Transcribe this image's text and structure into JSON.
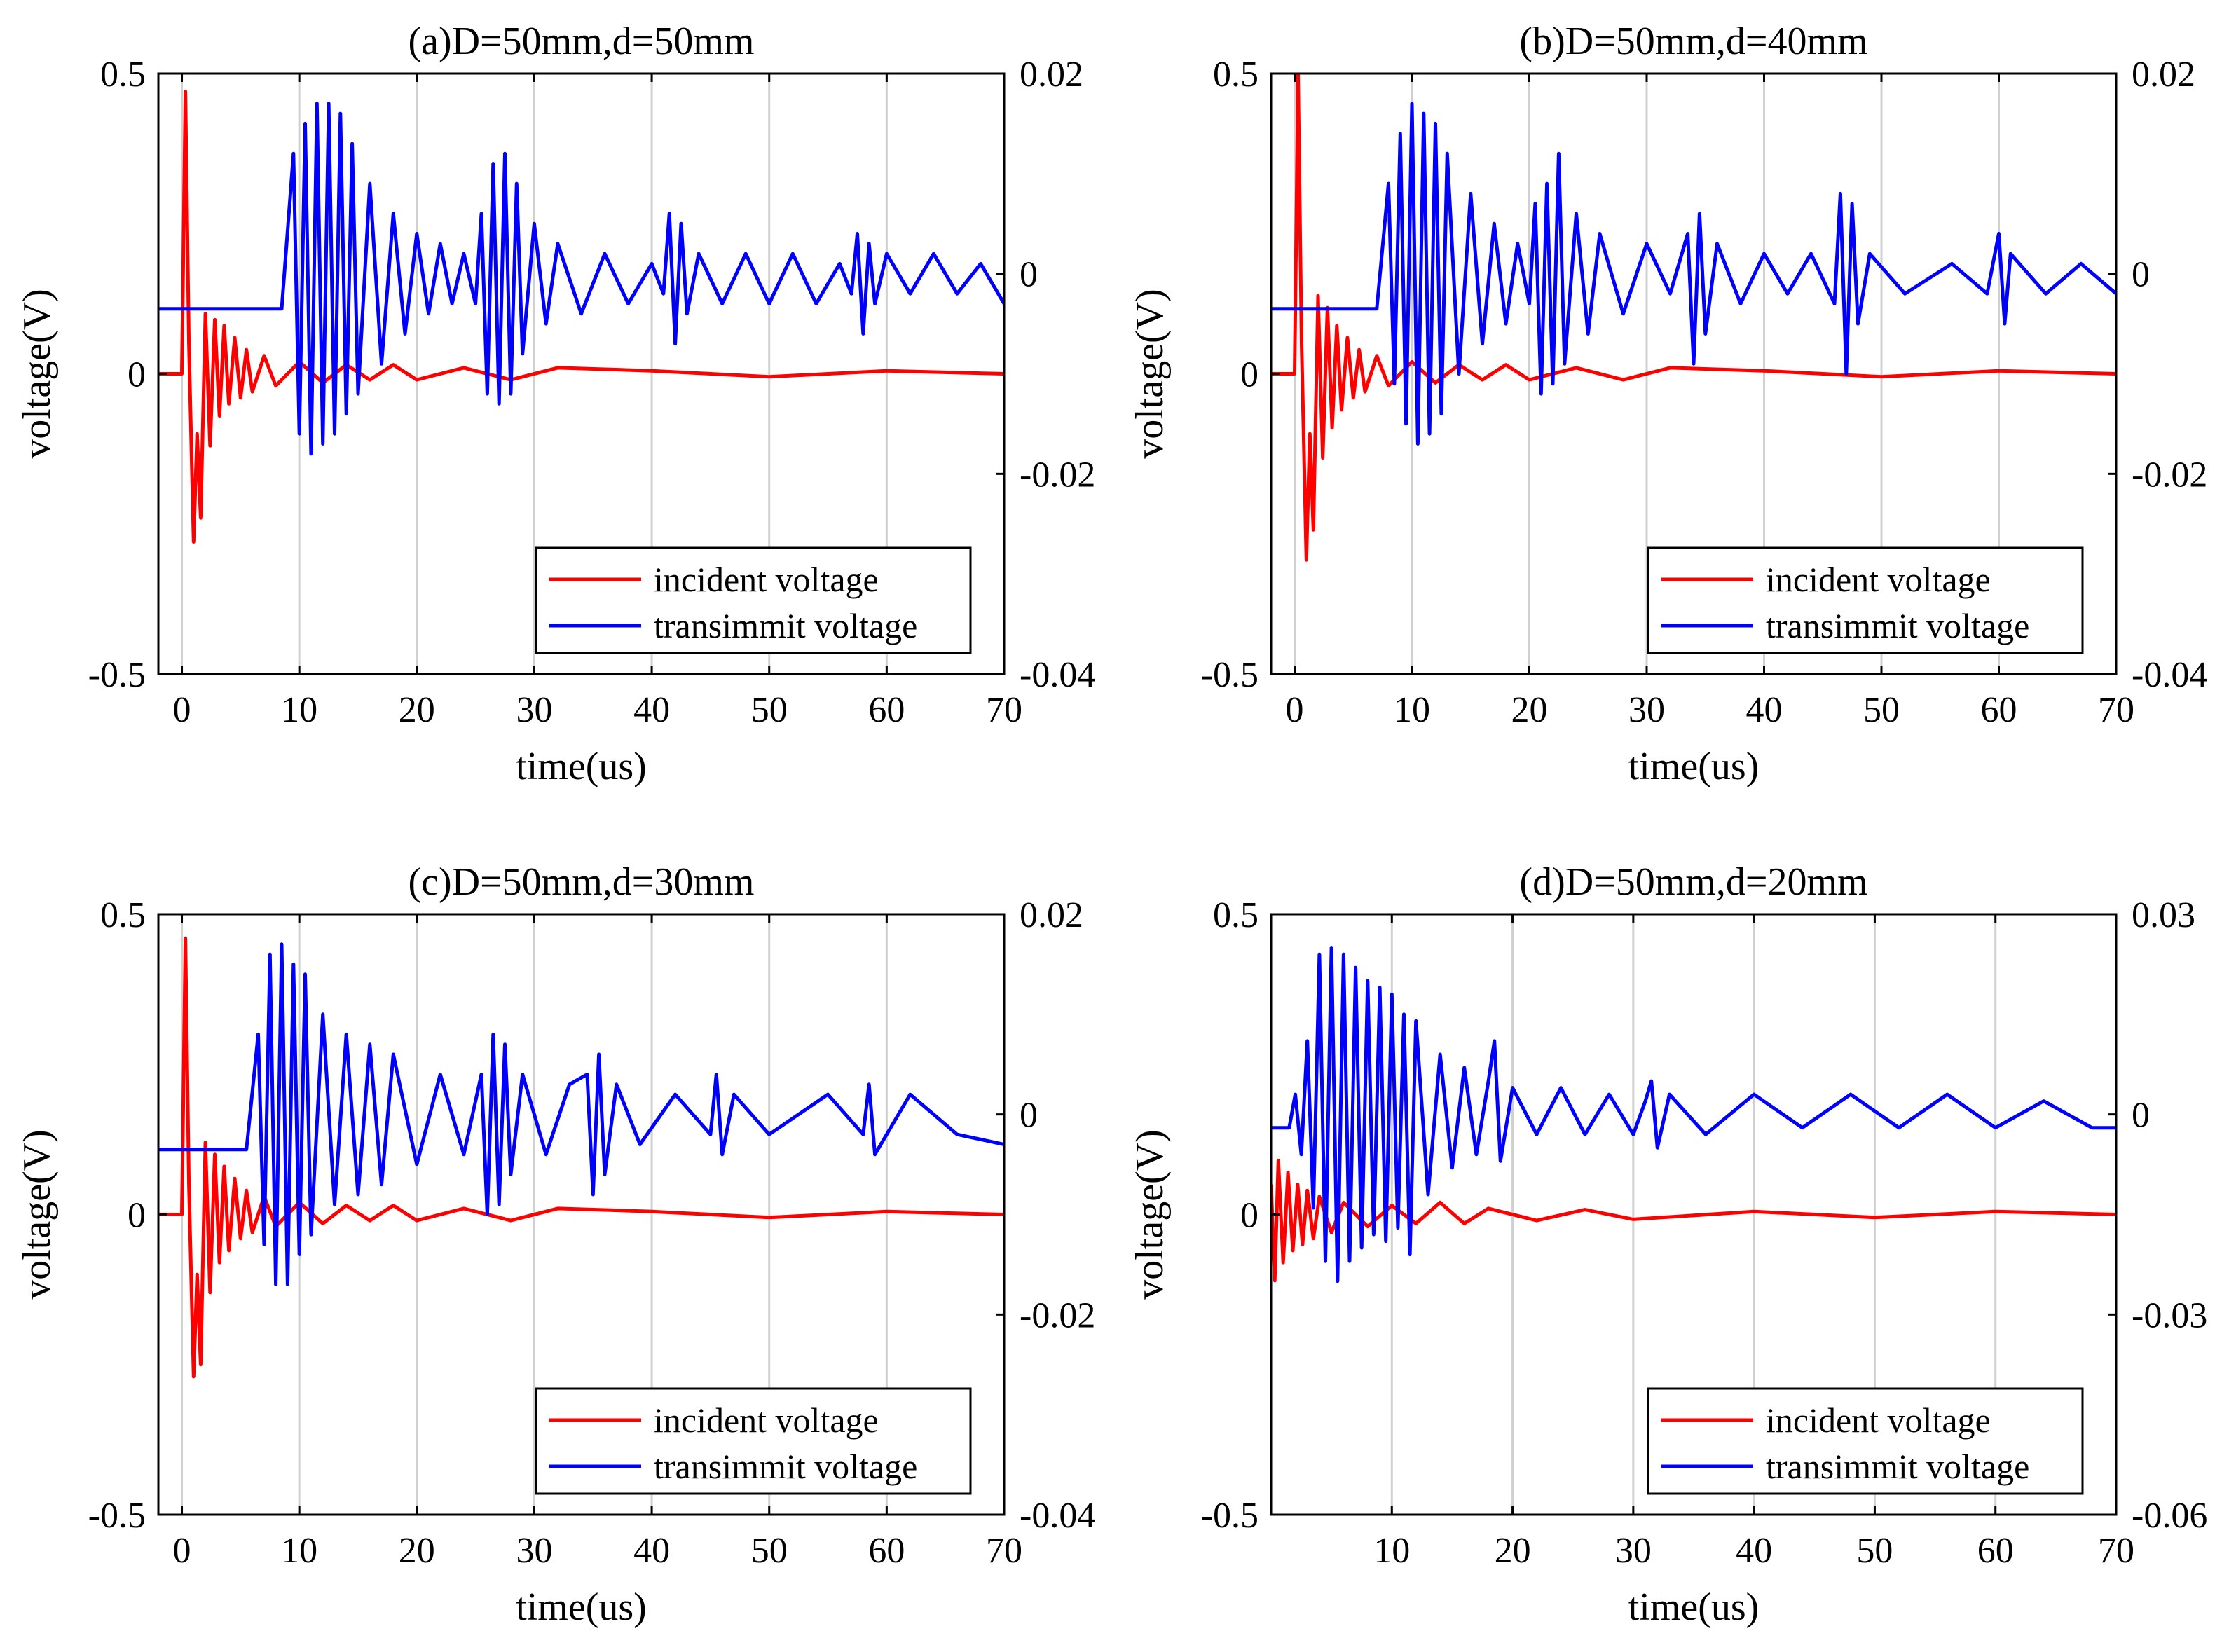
{
  "colors": {
    "incident": "#ff0000",
    "transmit": "#0000ff",
    "grid": "#d0d0d0",
    "axes": "#000000"
  },
  "chart_data": [
    {
      "type": "line",
      "title": "(a)D=50mm,d=50mm",
      "xlabel": "time(us)",
      "ylabel": "voltage(V)",
      "xlim": [
        -2,
        70
      ],
      "ylim": [
        -0.5,
        0.5
      ],
      "y2lim": [
        -0.04,
        0.02
      ],
      "xticks": [
        0,
        10,
        20,
        30,
        40,
        50,
        60,
        70
      ],
      "yticks": [
        -0.5,
        0,
        0.5
      ],
      "y2ticks": [
        -0.04,
        -0.02,
        0,
        0.02
      ],
      "xtick_labels": [
        "0",
        "10",
        "20",
        "30",
        "40",
        "50",
        "60",
        "70"
      ],
      "ytick_labels": [
        "-0.5",
        "0",
        "0.5"
      ],
      "y2tick_labels": [
        "-0.04",
        "-0.02",
        "0",
        "0.02"
      ],
      "grid": "vertical",
      "legend": {
        "position": "bottom-right",
        "entries": [
          "incident voltage",
          "transimmit voltage"
        ]
      },
      "series": [
        {
          "name": "incident voltage",
          "axis": "left",
          "color": "#ff0000",
          "x": [
            -2,
            0,
            0.3,
            0.6,
            1.0,
            1.3,
            1.6,
            2.0,
            2.4,
            2.8,
            3.2,
            3.6,
            4.0,
            4.5,
            5.0,
            5.5,
            6.0,
            7.0,
            8.0,
            10.0,
            12.0,
            14.0,
            16.0,
            18.0,
            20.0,
            24.0,
            28.0,
            32.0,
            40.0,
            50.0,
            60.0,
            70.0
          ],
          "values": [
            0,
            0,
            0.47,
            0.05,
            -0.28,
            -0.1,
            -0.24,
            0.1,
            -0.12,
            0.09,
            -0.07,
            0.08,
            -0.05,
            0.06,
            -0.04,
            0.04,
            -0.03,
            0.03,
            -0.02,
            0.02,
            -0.015,
            0.015,
            -0.01,
            0.015,
            -0.01,
            0.01,
            -0.01,
            0.01,
            0.005,
            -0.005,
            0.005,
            0
          ]
        },
        {
          "name": "transimmit voltage",
          "axis": "right",
          "color": "#0000ff",
          "x": [
            -2,
            8.5,
            9.5,
            10,
            10.5,
            11,
            11.5,
            12,
            12.5,
            13,
            13.5,
            14,
            14.5,
            15,
            16,
            17,
            18,
            19,
            20,
            21,
            22,
            23,
            24,
            25,
            25.5,
            26,
            26.5,
            27,
            27.5,
            28,
            28.5,
            29,
            30,
            31,
            32,
            34,
            36,
            38,
            40,
            41,
            41.5,
            42,
            42.5,
            43,
            44,
            46,
            48,
            50,
            52,
            54,
            56,
            57,
            57.5,
            58,
            58.5,
            59,
            60,
            62,
            64,
            66,
            68,
            70
          ],
          "values": [
            -0.0035,
            -0.0035,
            0.012,
            -0.016,
            0.015,
            -0.018,
            0.017,
            -0.017,
            0.017,
            -0.016,
            0.016,
            -0.014,
            0.013,
            -0.012,
            0.009,
            -0.009,
            0.006,
            -0.006,
            0.004,
            -0.004,
            0.003,
            -0.003,
            0.002,
            -0.003,
            0.006,
            -0.012,
            0.011,
            -0.013,
            0.012,
            -0.012,
            0.009,
            -0.008,
            0.005,
            -0.005,
            0.003,
            -0.004,
            0.002,
            -0.003,
            0.001,
            -0.002,
            0.006,
            -0.007,
            0.005,
            -0.004,
            0.002,
            -0.003,
            0.002,
            -0.003,
            0.002,
            -0.003,
            0.001,
            -0.002,
            0.004,
            -0.006,
            0.003,
            -0.003,
            0.002,
            -0.002,
            0.002,
            -0.002,
            0.001,
            -0.003
          ]
        }
      ]
    },
    {
      "type": "line",
      "title": "(b)D=50mm,d=40mm",
      "xlabel": "time(us)",
      "ylabel": "voltage(V)",
      "xlim": [
        -2,
        70
      ],
      "ylim": [
        -0.5,
        0.5
      ],
      "y2lim": [
        -0.04,
        0.02
      ],
      "xticks": [
        0,
        10,
        20,
        30,
        40,
        50,
        60,
        70
      ],
      "yticks": [
        -0.5,
        0,
        0.5
      ],
      "y2ticks": [
        -0.04,
        -0.02,
        0,
        0.02
      ],
      "xtick_labels": [
        "0",
        "10",
        "20",
        "30",
        "40",
        "50",
        "60",
        "70"
      ],
      "ytick_labels": [
        "-0.5",
        "0",
        "0.5"
      ],
      "y2tick_labels": [
        "-0.04",
        "-0.02",
        "0",
        "0.02"
      ],
      "grid": "vertical",
      "legend": {
        "position": "bottom-right",
        "entries": [
          "incident voltage",
          "transimmit voltage"
        ]
      },
      "series": [
        {
          "name": "incident voltage",
          "axis": "left",
          "color": "#ff0000",
          "x": [
            -2,
            0,
            0.3,
            0.6,
            1.0,
            1.3,
            1.6,
            2.0,
            2.4,
            2.8,
            3.2,
            3.6,
            4.0,
            4.5,
            5.0,
            5.5,
            6.0,
            7.0,
            8.0,
            10.0,
            12.0,
            14.0,
            16.0,
            18.0,
            20.0,
            24.0,
            28.0,
            32.0,
            40.0,
            50.0,
            60.0,
            70.0
          ],
          "values": [
            0,
            0,
            0.5,
            0.05,
            -0.31,
            -0.1,
            -0.26,
            0.13,
            -0.14,
            0.11,
            -0.09,
            0.08,
            -0.06,
            0.06,
            -0.04,
            0.04,
            -0.03,
            0.03,
            -0.02,
            0.02,
            -0.015,
            0.015,
            -0.01,
            0.015,
            -0.01,
            0.01,
            -0.01,
            0.01,
            0.005,
            -0.005,
            0.005,
            0
          ]
        },
        {
          "name": "transimmit voltage",
          "axis": "right",
          "color": "#0000ff",
          "x": [
            -2,
            7,
            8,
            8.5,
            9,
            9.5,
            10,
            10.5,
            11,
            11.5,
            12,
            12.5,
            13,
            14,
            15,
            16,
            17,
            18,
            19,
            20,
            20.5,
            21,
            21.5,
            22,
            22.5,
            23,
            24,
            25,
            26,
            28,
            30,
            32,
            33.5,
            34,
            34.5,
            35,
            36,
            38,
            40,
            42,
            44,
            46,
            46.5,
            47,
            47.5,
            48,
            49,
            52,
            56,
            59,
            60,
            60.5,
            61,
            64,
            67,
            70
          ],
          "values": [
            -0.0035,
            -0.0035,
            0.009,
            -0.011,
            0.014,
            -0.015,
            0.017,
            -0.017,
            0.016,
            -0.016,
            0.015,
            -0.014,
            0.012,
            -0.01,
            0.008,
            -0.007,
            0.005,
            -0.005,
            0.003,
            -0.003,
            0.007,
            -0.012,
            0.009,
            -0.011,
            0.012,
            -0.009,
            0.006,
            -0.006,
            0.004,
            -0.004,
            0.003,
            -0.002,
            0.004,
            -0.009,
            0.006,
            -0.006,
            0.003,
            -0.003,
            0.002,
            -0.002,
            0.002,
            -0.003,
            0.008,
            -0.01,
            0.007,
            -0.005,
            0.002,
            -0.002,
            0.001,
            -0.002,
            0.004,
            -0.005,
            0.002,
            -0.002,
            0.001,
            -0.002
          ]
        }
      ]
    },
    {
      "type": "line",
      "title": "(c)D=50mm,d=30mm",
      "xlabel": "time(us)",
      "ylabel": "voltage(V)",
      "xlim": [
        -2,
        70
      ],
      "ylim": [
        -0.5,
        0.5
      ],
      "y2lim": [
        -0.04,
        0.02
      ],
      "xticks": [
        0,
        10,
        20,
        30,
        40,
        50,
        60,
        70
      ],
      "yticks": [
        -0.5,
        0,
        0.5
      ],
      "y2ticks": [
        -0.04,
        -0.02,
        0,
        0.02
      ],
      "xtick_labels": [
        "0",
        "10",
        "20",
        "30",
        "40",
        "50",
        "60",
        "70"
      ],
      "ytick_labels": [
        "-0.5",
        "0",
        "0.5"
      ],
      "y2tick_labels": [
        "-0.04",
        "-0.02",
        "0",
        "0.02"
      ],
      "grid": "vertical",
      "legend": {
        "position": "bottom-right",
        "entries": [
          "incident voltage",
          "transimmit voltage"
        ]
      },
      "series": [
        {
          "name": "incident voltage",
          "axis": "left",
          "color": "#ff0000",
          "x": [
            -2,
            0,
            0.3,
            0.6,
            1.0,
            1.3,
            1.6,
            2.0,
            2.4,
            2.8,
            3.2,
            3.6,
            4.0,
            4.5,
            5.0,
            5.5,
            6.0,
            7.0,
            8.0,
            10.0,
            12.0,
            14.0,
            16.0,
            18.0,
            20.0,
            24.0,
            28.0,
            32.0,
            40.0,
            50.0,
            60.0,
            70.0
          ],
          "values": [
            0,
            0,
            0.46,
            0.05,
            -0.27,
            -0.1,
            -0.25,
            0.12,
            -0.13,
            0.1,
            -0.08,
            0.08,
            -0.06,
            0.06,
            -0.04,
            0.04,
            -0.03,
            0.03,
            -0.02,
            0.02,
            -0.015,
            0.015,
            -0.01,
            0.015,
            -0.01,
            0.01,
            -0.01,
            0.01,
            0.005,
            -0.005,
            0.005,
            0
          ]
        },
        {
          "name": "transimmit voltage",
          "axis": "right",
          "color": "#0000ff",
          "x": [
            -2,
            5.5,
            6.5,
            7,
            7.5,
            8,
            8.5,
            9,
            9.5,
            10,
            10.5,
            11,
            12,
            13,
            14,
            15,
            16,
            17,
            18,
            20,
            22,
            24,
            25.5,
            26,
            26.5,
            27,
            27.5,
            28,
            29,
            31,
            33,
            34.5,
            35,
            35.5,
            36,
            37,
            39,
            42,
            45,
            45.5,
            46,
            47,
            50,
            55,
            58,
            58.5,
            59,
            62,
            66,
            70
          ],
          "values": [
            -0.0035,
            -0.0035,
            0.008,
            -0.013,
            0.016,
            -0.017,
            0.017,
            -0.017,
            0.015,
            -0.014,
            0.014,
            -0.012,
            0.01,
            -0.009,
            0.008,
            -0.008,
            0.007,
            -0.007,
            0.006,
            -0.005,
            0.004,
            -0.004,
            0.004,
            -0.01,
            0.008,
            -0.009,
            0.007,
            -0.006,
            0.004,
            -0.004,
            0.003,
            0.004,
            -0.008,
            0.006,
            -0.006,
            0.003,
            -0.003,
            0.002,
            -0.002,
            0.004,
            -0.004,
            0.002,
            -0.002,
            0.002,
            -0.002,
            0.003,
            -0.004,
            0.002,
            -0.002,
            -0.003
          ]
        }
      ]
    },
    {
      "type": "line",
      "title": "(d)D=50mm,d=20mm",
      "xlabel": "time(us)",
      "ylabel": "voltage(V)",
      "xlim": [
        0,
        70
      ],
      "ylim": [
        -0.5,
        0.5
      ],
      "y2lim": [
        -0.06,
        0.03
      ],
      "xticks": [
        10,
        20,
        30,
        40,
        50,
        60,
        70
      ],
      "yticks": [
        -0.5,
        0,
        0.5
      ],
      "y2ticks": [
        -0.06,
        -0.03,
        0,
        0.03
      ],
      "xtick_labels": [
        "10",
        "20",
        "30",
        "40",
        "50",
        "60",
        "70"
      ],
      "ytick_labels": [
        "-0.5",
        "0",
        "0.5"
      ],
      "y2tick_labels": [
        "-0.06",
        "-0.03",
        "0",
        "0.03"
      ],
      "grid": "vertical",
      "legend": {
        "position": "bottom-right",
        "entries": [
          "incident voltage",
          "transimmit voltage"
        ]
      },
      "series": [
        {
          "name": "incident voltage",
          "axis": "left",
          "color": "#ff0000",
          "x": [
            0,
            0.3,
            0.6,
            1.0,
            1.4,
            1.8,
            2.2,
            2.6,
            3.0,
            3.5,
            4.0,
            5.0,
            6.0,
            8.0,
            10.0,
            12.0,
            14.0,
            16.0,
            18.0,
            22.0,
            26.0,
            30.0,
            40.0,
            50.0,
            60.0,
            70.0
          ],
          "values": [
            0.05,
            -0.11,
            0.09,
            -0.08,
            0.07,
            -0.06,
            0.05,
            -0.05,
            0.04,
            -0.04,
            0.03,
            -0.03,
            0.02,
            -0.02,
            0.015,
            -0.015,
            0.02,
            -0.015,
            0.01,
            -0.01,
            0.008,
            -0.008,
            0.005,
            -0.005,
            0.005,
            0
          ]
        },
        {
          "name": "transimmit voltage",
          "axis": "right",
          "color": "#0000ff",
          "x": [
            0,
            1.5,
            2,
            2.5,
            3,
            3.5,
            4,
            4.5,
            5,
            5.5,
            6,
            6.5,
            7,
            7.5,
            8,
            8.5,
            9,
            9.5,
            10,
            10.5,
            11,
            11.5,
            12,
            13,
            14,
            15,
            16,
            17,
            18,
            18.5,
            19,
            20,
            22,
            24,
            26,
            28,
            30,
            31,
            31.5,
            32,
            33,
            36,
            40,
            44,
            48,
            52,
            56,
            60,
            64,
            68,
            70
          ],
          "values": [
            -0.002,
            -0.002,
            0.003,
            -0.006,
            0.011,
            -0.014,
            0.024,
            -0.022,
            0.025,
            -0.025,
            0.024,
            -0.022,
            0.022,
            -0.02,
            0.02,
            -0.018,
            0.019,
            -0.019,
            0.018,
            -0.017,
            0.015,
            -0.021,
            0.014,
            -0.012,
            0.009,
            -0.008,
            0.007,
            -0.006,
            0.005,
            0.011,
            -0.007,
            0.004,
            -0.003,
            0.004,
            -0.003,
            0.003,
            -0.003,
            0.002,
            0.005,
            -0.005,
            0.003,
            -0.003,
            0.003,
            -0.002,
            0.003,
            -0.002,
            0.003,
            -0.002,
            0.002,
            -0.002,
            -0.002
          ]
        }
      ]
    }
  ]
}
